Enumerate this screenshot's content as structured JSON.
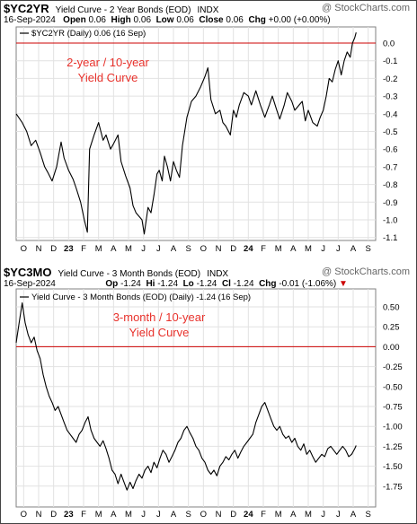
{
  "panels": [
    {
      "symbol": "$YC2YR",
      "description": "Yield Curve - 2 Year Bonds (EOD)",
      "exchange": "INDX",
      "watermark": "@ StockCharts.com",
      "date": "16-Sep-2024",
      "stats": [
        {
          "label": "Open",
          "value": "0.06"
        },
        {
          "label": "High",
          "value": "0.06"
        },
        {
          "label": "Low",
          "value": "0.06"
        },
        {
          "label": "Close",
          "value": "0.06"
        },
        {
          "label": "Chg",
          "value": "+0.00 (+0.00%)"
        }
      ],
      "legend": "$YC2YR (Daily) 0.06 (16 Sep)",
      "annotation": [
        "2-year / 10-year",
        "Yield Curve"
      ]
    },
    {
      "symbol": "$YC3MO",
      "description": "Yield Curve - 3 Month Bonds (EOD)",
      "exchange": "INDX",
      "watermark": "@ StockCharts.com",
      "date": "16-Sep-2024",
      "stats": [
        {
          "label": "Op",
          "value": "-1.24"
        },
        {
          "label": "Hi",
          "value": "-1.24"
        },
        {
          "label": "Lo",
          "value": "-1.24"
        },
        {
          "label": "Cl",
          "value": "-1.24"
        },
        {
          "label": "Chg",
          "value": "-0.01 (-1.06%)"
        }
      ],
      "legend": "Yield Curve - 3 Month Bonds (EOD) (Daily) -1.24 (16 Sep)",
      "annotation": [
        "3-month / 10-year",
        "Yield Curve"
      ]
    }
  ],
  "chart_data": [
    {
      "type": "line",
      "x_ticks": [
        "O",
        "N",
        "D",
        "23",
        "F",
        "M",
        "A",
        "M",
        "J",
        "J",
        "A",
        "S",
        "O",
        "N",
        "D",
        "24",
        "F",
        "M",
        "A",
        "M",
        "J",
        "J",
        "A",
        "S"
      ],
      "y_ticks": [
        "0.0",
        "-0.1",
        "-0.2",
        "-0.3",
        "-0.4",
        "-0.5",
        "-0.6",
        "-0.7",
        "-0.8",
        "-0.9",
        "-1.0",
        "-1.1"
      ],
      "ylim": [
        -1.1,
        0.0
      ],
      "reference_line": 0.0,
      "grid": true,
      "series": [
        {
          "points": [
            [
              0,
              -0.4
            ],
            [
              0.4,
              -0.45
            ],
            [
              0.7,
              -0.5
            ],
            [
              1.0,
              -0.58
            ],
            [
              1.3,
              -0.55
            ],
            [
              1.6,
              -0.62
            ],
            [
              1.9,
              -0.7
            ],
            [
              2.1,
              -0.73
            ],
            [
              2.4,
              -0.78
            ],
            [
              2.7,
              -0.7
            ],
            [
              3.0,
              -0.56
            ],
            [
              3.2,
              -0.65
            ],
            [
              3.5,
              -0.72
            ],
            [
              3.8,
              -0.77
            ],
            [
              4.0,
              -0.82
            ],
            [
              4.3,
              -0.9
            ],
            [
              4.55,
              -1.0
            ],
            [
              4.75,
              -1.07
            ],
            [
              4.9,
              -0.6
            ],
            [
              5.2,
              -0.52
            ],
            [
              5.5,
              -0.45
            ],
            [
              5.8,
              -0.55
            ],
            [
              6.0,
              -0.52
            ],
            [
              6.3,
              -0.6
            ],
            [
              6.5,
              -0.57
            ],
            [
              6.8,
              -0.52
            ],
            [
              7.0,
              -0.67
            ],
            [
              7.3,
              -0.75
            ],
            [
              7.6,
              -0.82
            ],
            [
              7.8,
              -0.92
            ],
            [
              8.0,
              -0.96
            ],
            [
              8.2,
              -0.98
            ],
            [
              8.4,
              -1.0
            ],
            [
              8.55,
              -1.08
            ],
            [
              8.8,
              -0.93
            ],
            [
              9.0,
              -0.96
            ],
            [
              9.2,
              -0.86
            ],
            [
              9.4,
              -0.74
            ],
            [
              9.55,
              -0.72
            ],
            [
              9.75,
              -0.78
            ],
            [
              9.9,
              -0.64
            ],
            [
              10.1,
              -0.7
            ],
            [
              10.3,
              -0.78
            ],
            [
              10.5,
              -0.67
            ],
            [
              10.7,
              -0.72
            ],
            [
              10.9,
              -0.76
            ],
            [
              11.1,
              -0.58
            ],
            [
              11.4,
              -0.42
            ],
            [
              11.7,
              -0.33
            ],
            [
              12.0,
              -0.3
            ],
            [
              12.3,
              -0.25
            ],
            [
              12.6,
              -0.19
            ],
            [
              12.8,
              -0.14
            ],
            [
              13.0,
              -0.32
            ],
            [
              13.3,
              -0.4
            ],
            [
              13.6,
              -0.38
            ],
            [
              13.8,
              -0.45
            ],
            [
              14.0,
              -0.47
            ],
            [
              14.3,
              -0.52
            ],
            [
              14.5,
              -0.38
            ],
            [
              14.7,
              -0.42
            ],
            [
              14.9,
              -0.35
            ],
            [
              15.2,
              -0.28
            ],
            [
              15.5,
              -0.3
            ],
            [
              15.7,
              -0.35
            ],
            [
              16.0,
              -0.27
            ],
            [
              16.3,
              -0.35
            ],
            [
              16.6,
              -0.42
            ],
            [
              16.9,
              -0.35
            ],
            [
              17.1,
              -0.3
            ],
            [
              17.4,
              -0.38
            ],
            [
              17.6,
              -0.43
            ],
            [
              17.9,
              -0.35
            ],
            [
              18.1,
              -0.28
            ],
            [
              18.4,
              -0.33
            ],
            [
              18.6,
              -0.38
            ],
            [
              18.9,
              -0.35
            ],
            [
              19.1,
              -0.33
            ],
            [
              19.3,
              -0.44
            ],
            [
              19.5,
              -0.38
            ],
            [
              19.8,
              -0.45
            ],
            [
              20.1,
              -0.47
            ],
            [
              20.3,
              -0.42
            ],
            [
              20.5,
              -0.38
            ],
            [
              20.7,
              -0.3
            ],
            [
              20.9,
              -0.2
            ],
            [
              21.1,
              -0.22
            ],
            [
              21.3,
              -0.15
            ],
            [
              21.5,
              -0.1
            ],
            [
              21.7,
              -0.18
            ],
            [
              21.9,
              -0.1
            ],
            [
              22.1,
              -0.05
            ],
            [
              22.3,
              -0.08
            ],
            [
              22.45,
              0.0
            ],
            [
              22.6,
              0.03
            ],
            [
              22.7,
              0.06
            ]
          ]
        }
      ]
    },
    {
      "type": "line",
      "x_ticks": [
        "O",
        "N",
        "D",
        "23",
        "F",
        "M",
        "A",
        "M",
        "J",
        "J",
        "A",
        "S",
        "O",
        "N",
        "D",
        "24",
        "F",
        "M",
        "A",
        "M",
        "J",
        "J",
        "A",
        "S"
      ],
      "y_ticks": [
        "0.50",
        "0.25",
        "0.00",
        "-0.25",
        "-0.50",
        "-0.75",
        "-1.00",
        "-1.25",
        "-1.50",
        "-1.75"
      ],
      "ylim": [
        -1.75,
        0.5
      ],
      "reference_line": 0.0,
      "grid": true,
      "series": [
        {
          "points": [
            [
              0,
              0.05
            ],
            [
              0.2,
              0.3
            ],
            [
              0.4,
              0.55
            ],
            [
              0.6,
              0.3
            ],
            [
              0.8,
              0.15
            ],
            [
              1.0,
              0.05
            ],
            [
              1.2,
              0.12
            ],
            [
              1.4,
              -0.05
            ],
            [
              1.6,
              -0.15
            ],
            [
              1.8,
              -0.35
            ],
            [
              2.0,
              -0.5
            ],
            [
              2.2,
              -0.62
            ],
            [
              2.4,
              -0.7
            ],
            [
              2.6,
              -0.8
            ],
            [
              2.8,
              -0.75
            ],
            [
              3.0,
              -0.85
            ],
            [
              3.2,
              -0.95
            ],
            [
              3.4,
              -1.05
            ],
            [
              3.6,
              -1.1
            ],
            [
              3.8,
              -1.15
            ],
            [
              4.0,
              -1.2
            ],
            [
              4.2,
              -1.1
            ],
            [
              4.4,
              -1.05
            ],
            [
              4.6,
              -0.95
            ],
            [
              4.8,
              -0.88
            ],
            [
              5.0,
              -1.05
            ],
            [
              5.2,
              -1.15
            ],
            [
              5.4,
              -1.2
            ],
            [
              5.6,
              -1.25
            ],
            [
              5.8,
              -1.18
            ],
            [
              6.0,
              -1.28
            ],
            [
              6.2,
              -1.4
            ],
            [
              6.4,
              -1.55
            ],
            [
              6.6,
              -1.6
            ],
            [
              6.8,
              -1.72
            ],
            [
              7.0,
              -1.6
            ],
            [
              7.2,
              -1.7
            ],
            [
              7.4,
              -1.8
            ],
            [
              7.6,
              -1.7
            ],
            [
              7.8,
              -1.78
            ],
            [
              8.0,
              -1.68
            ],
            [
              8.2,
              -1.6
            ],
            [
              8.4,
              -1.65
            ],
            [
              8.6,
              -1.55
            ],
            [
              8.8,
              -1.5
            ],
            [
              9.0,
              -1.58
            ],
            [
              9.2,
              -1.45
            ],
            [
              9.4,
              -1.52
            ],
            [
              9.6,
              -1.4
            ],
            [
              9.8,
              -1.3
            ],
            [
              10.0,
              -1.35
            ],
            [
              10.2,
              -1.45
            ],
            [
              10.4,
              -1.38
            ],
            [
              10.6,
              -1.3
            ],
            [
              10.8,
              -1.2
            ],
            [
              11.0,
              -1.15
            ],
            [
              11.2,
              -1.05
            ],
            [
              11.4,
              -1.0
            ],
            [
              11.6,
              -1.08
            ],
            [
              11.8,
              -1.15
            ],
            [
              12.0,
              -1.25
            ],
            [
              12.2,
              -1.3
            ],
            [
              12.4,
              -1.4
            ],
            [
              12.6,
              -1.45
            ],
            [
              12.8,
              -1.55
            ],
            [
              13.0,
              -1.6
            ],
            [
              13.2,
              -1.55
            ],
            [
              13.4,
              -1.62
            ],
            [
              13.6,
              -1.5
            ],
            [
              13.8,
              -1.45
            ],
            [
              14.0,
              -1.38
            ],
            [
              14.2,
              -1.42
            ],
            [
              14.4,
              -1.35
            ],
            [
              14.6,
              -1.3
            ],
            [
              14.8,
              -1.4
            ],
            [
              15.0,
              -1.32
            ],
            [
              15.2,
              -1.25
            ],
            [
              15.4,
              -1.2
            ],
            [
              15.6,
              -1.15
            ],
            [
              15.8,
              -1.1
            ],
            [
              16.0,
              -0.95
            ],
            [
              16.2,
              -0.85
            ],
            [
              16.4,
              -0.75
            ],
            [
              16.6,
              -0.7
            ],
            [
              16.8,
              -0.8
            ],
            [
              17.0,
              -0.9
            ],
            [
              17.2,
              -1.0
            ],
            [
              17.4,
              -1.05
            ],
            [
              17.6,
              -1.0
            ],
            [
              17.8,
              -1.1
            ],
            [
              18.0,
              -1.15
            ],
            [
              18.2,
              -1.12
            ],
            [
              18.4,
              -1.2
            ],
            [
              18.6,
              -1.15
            ],
            [
              18.8,
              -1.25
            ],
            [
              19.0,
              -1.3
            ],
            [
              19.2,
              -1.22
            ],
            [
              19.4,
              -1.35
            ],
            [
              19.6,
              -1.3
            ],
            [
              19.8,
              -1.38
            ],
            [
              20.0,
              -1.45
            ],
            [
              20.2,
              -1.4
            ],
            [
              20.4,
              -1.35
            ],
            [
              20.6,
              -1.38
            ],
            [
              20.8,
              -1.28
            ],
            [
              21.0,
              -1.25
            ],
            [
              21.2,
              -1.3
            ],
            [
              21.4,
              -1.35
            ],
            [
              21.6,
              -1.3
            ],
            [
              21.8,
              -1.25
            ],
            [
              22.0,
              -1.3
            ],
            [
              22.2,
              -1.38
            ],
            [
              22.4,
              -1.35
            ],
            [
              22.6,
              -1.28
            ],
            [
              22.7,
              -1.24
            ]
          ]
        }
      ]
    }
  ]
}
